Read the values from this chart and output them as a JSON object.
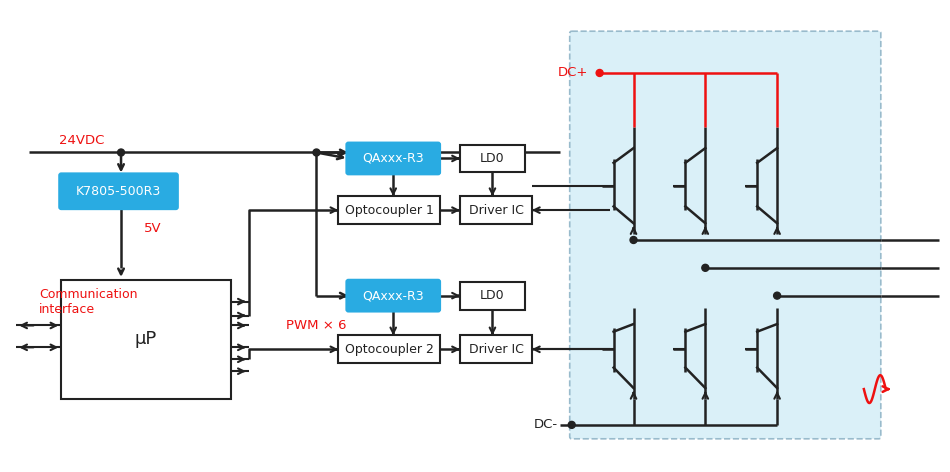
{
  "bg_color": "#ffffff",
  "blue_box_color": "#29ABE2",
  "white": "#ffffff",
  "box_border": "#555555",
  "light_bg_color": "#DAEEF8",
  "red_color": "#EE1111",
  "dark_color": "#222222",
  "label_24VDC": "24VDC",
  "label_5V": "5V",
  "label_comm": "Communication\ninterface",
  "label_pwm": "PWM × 6",
  "label_dcplus": "DC+",
  "label_dcminus": "DC-",
  "label_k7805": "K7805-500R3",
  "label_qaxxx1": "QAxxx-R3",
  "label_qaxxx2": "QAxxx-R3",
  "label_ld0_1": "LD0",
  "label_ld0_2": "LD0",
  "label_opto1": "Optocoupler 1",
  "label_opto2": "Optocoupler 2",
  "label_driver1": "Driver IC",
  "label_driver2": "Driver IC",
  "label_up": "μP"
}
